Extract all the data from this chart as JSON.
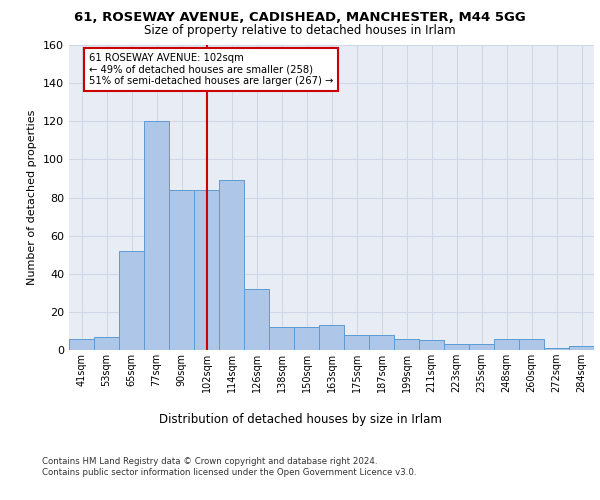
{
  "title_line1": "61, ROSEWAY AVENUE, CADISHEAD, MANCHESTER, M44 5GG",
  "title_line2": "Size of property relative to detached houses in Irlam",
  "xlabel": "Distribution of detached houses by size in Irlam",
  "ylabel": "Number of detached properties",
  "footnote": "Contains HM Land Registry data © Crown copyright and database right 2024.\nContains public sector information licensed under the Open Government Licence v3.0.",
  "bin_labels": [
    "41sqm",
    "53sqm",
    "65sqm",
    "77sqm",
    "90sqm",
    "102sqm",
    "114sqm",
    "126sqm",
    "138sqm",
    "150sqm",
    "163sqm",
    "175sqm",
    "187sqm",
    "199sqm",
    "211sqm",
    "223sqm",
    "235sqm",
    "248sqm",
    "260sqm",
    "272sqm",
    "284sqm"
  ],
  "bar_heights": [
    6,
    7,
    52,
    120,
    84,
    84,
    89,
    32,
    12,
    12,
    13,
    8,
    8,
    6,
    5,
    3,
    3,
    6,
    6,
    1,
    2
  ],
  "bar_color": "#aec6e8",
  "bar_edge_color": "#5b9bd5",
  "vline_x": 5.0,
  "vline_color": "#cc0000",
  "annotation_text": "61 ROSEWAY AVENUE: 102sqm\n← 49% of detached houses are smaller (258)\n51% of semi-detached houses are larger (267) →",
  "annotation_box_color": "#ffffff",
  "annotation_border_color": "#cc0000",
  "ylim": [
    0,
    160
  ],
  "yticks": [
    0,
    20,
    40,
    60,
    80,
    100,
    120,
    140,
    160
  ],
  "grid_color": "#d0d8e8",
  "background_color": "#e8edf5"
}
